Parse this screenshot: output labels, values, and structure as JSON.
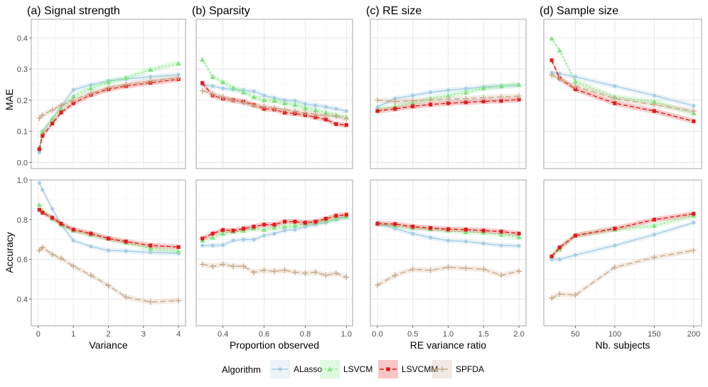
{
  "legend": {
    "title": "Algorithm",
    "items": [
      {
        "name": "ALasso",
        "color": "#a6cee3",
        "shape": "circle",
        "dash": "solid"
      },
      {
        "name": "LSVCM",
        "color": "#7fe57f",
        "shape": "triangle",
        "dash": "dotted"
      },
      {
        "name": "LSVCMM",
        "color": "#e31a1c",
        "shape": "square",
        "dash": "dashed"
      },
      {
        "name": "SPFDA",
        "color": "#c8a98a",
        "shape": "plus",
        "dash": "longdash"
      }
    ],
    "placement": "bottom"
  },
  "row_labels": {
    "top": "MAE",
    "bottom": "Accuracy"
  },
  "chart_data": [
    {
      "type": "line",
      "panel": "(a) Signal strength",
      "xlabel": "Variance",
      "ylabel": "MAE",
      "xlim": [
        -0.2,
        4.2
      ],
      "ylim": [
        -0.02,
        0.46
      ],
      "xticks": [
        0,
        1,
        2,
        3,
        4
      ],
      "yticks": [
        0.0,
        0.1,
        0.2,
        0.3,
        0.4
      ],
      "grid": true,
      "series": [
        {
          "name": "ALasso",
          "x": [
            0.03,
            0.12,
            0.4,
            0.65,
            1.0,
            1.5,
            2.0,
            2.5,
            3.2,
            4.0
          ],
          "y": [
            0.032,
            0.1,
            0.14,
            0.18,
            0.233,
            0.249,
            0.262,
            0.268,
            0.275,
            0.282
          ]
        },
        {
          "name": "LSVCM",
          "x": [
            0.03,
            0.12,
            0.4,
            0.65,
            1.0,
            1.5,
            2.0,
            2.5,
            3.2,
            4.0
          ],
          "y": [
            0.048,
            0.098,
            0.14,
            0.172,
            0.212,
            0.238,
            0.258,
            0.272,
            0.298,
            0.318
          ]
        },
        {
          "name": "LSVCMM",
          "x": [
            0.03,
            0.12,
            0.4,
            0.65,
            1.0,
            1.5,
            2.0,
            2.5,
            3.2,
            4.0
          ],
          "y": [
            0.042,
            0.085,
            0.125,
            0.16,
            0.19,
            0.217,
            0.235,
            0.245,
            0.256,
            0.267
          ]
        },
        {
          "name": "SPFDA",
          "x": [
            0.03,
            0.12,
            0.4,
            0.65,
            1.0,
            1.5,
            2.0,
            2.5,
            3.2,
            4.0
          ],
          "y": [
            0.142,
            0.152,
            0.168,
            0.183,
            0.2,
            0.222,
            0.24,
            0.25,
            0.262,
            0.272
          ]
        }
      ]
    },
    {
      "type": "line",
      "panel": "(b) Sparsity",
      "xlabel": "Proportion observed",
      "ylabel": "MAE",
      "xlim": [
        0.27,
        1.03
      ],
      "ylim": [
        -0.02,
        0.46
      ],
      "xticks": [
        0.4,
        0.6,
        0.8,
        1.0
      ],
      "yticks": [
        0.0,
        0.1,
        0.2,
        0.3,
        0.4
      ],
      "grid": true,
      "series": [
        {
          "name": "ALasso",
          "x": [
            0.3,
            0.35,
            0.4,
            0.45,
            0.5,
            0.55,
            0.6,
            0.65,
            0.7,
            0.75,
            0.8,
            0.85,
            0.9,
            0.95,
            1.0
          ],
          "y": [
            0.25,
            0.245,
            0.238,
            0.234,
            0.232,
            0.228,
            0.215,
            0.207,
            0.2,
            0.198,
            0.188,
            0.183,
            0.178,
            0.172,
            0.165
          ]
        },
        {
          "name": "LSVCM",
          "x": [
            0.3,
            0.35,
            0.4,
            0.45,
            0.5,
            0.55,
            0.6,
            0.65,
            0.7,
            0.75,
            0.8,
            0.85,
            0.9,
            0.95,
            1.0
          ],
          "y": [
            0.33,
            0.275,
            0.258,
            0.24,
            0.225,
            0.21,
            0.2,
            0.198,
            0.19,
            0.185,
            0.175,
            0.168,
            0.16,
            0.152,
            0.145
          ]
        },
        {
          "name": "LSVCMM",
          "x": [
            0.3,
            0.35,
            0.4,
            0.45,
            0.5,
            0.55,
            0.6,
            0.65,
            0.7,
            0.75,
            0.8,
            0.85,
            0.9,
            0.95,
            1.0
          ],
          "y": [
            0.255,
            0.215,
            0.205,
            0.2,
            0.195,
            0.185,
            0.172,
            0.17,
            0.16,
            0.157,
            0.152,
            0.145,
            0.138,
            0.123,
            0.12
          ]
        },
        {
          "name": "SPFDA",
          "x": [
            0.3,
            0.35,
            0.4,
            0.45,
            0.5,
            0.55,
            0.6,
            0.65,
            0.7,
            0.75,
            0.8,
            0.85,
            0.9,
            0.95,
            1.0
          ],
          "y": [
            0.23,
            0.22,
            0.21,
            0.2,
            0.192,
            0.183,
            0.18,
            0.175,
            0.17,
            0.165,
            0.16,
            0.155,
            0.15,
            0.148,
            0.14
          ]
        }
      ]
    },
    {
      "type": "line",
      "panel": "(c) RE size",
      "xlabel": "RE variance ratio",
      "ylabel": "MAE",
      "xlim": [
        -0.1,
        2.1
      ],
      "ylim": [
        -0.02,
        0.46
      ],
      "xticks": [
        0.0,
        0.5,
        1.0,
        1.5,
        2.0
      ],
      "yticks": [
        0.0,
        0.1,
        0.2,
        0.3,
        0.4
      ],
      "grid": true,
      "series": [
        {
          "name": "ALasso",
          "x": [
            0.0,
            0.25,
            0.5,
            0.75,
            1.0,
            1.25,
            1.5,
            1.75,
            2.0
          ],
          "y": [
            0.178,
            0.205,
            0.215,
            0.225,
            0.232,
            0.237,
            0.242,
            0.245,
            0.248
          ]
        },
        {
          "name": "LSVCM",
          "x": [
            0.0,
            0.25,
            0.5,
            0.75,
            1.0,
            1.25,
            1.5,
            1.75,
            2.0
          ],
          "y": [
            0.168,
            0.18,
            0.192,
            0.205,
            0.215,
            0.225,
            0.238,
            0.245,
            0.25
          ]
        },
        {
          "name": "LSVCMM",
          "x": [
            0.0,
            0.25,
            0.5,
            0.75,
            1.0,
            1.25,
            1.5,
            1.75,
            2.0
          ],
          "y": [
            0.165,
            0.172,
            0.18,
            0.186,
            0.19,
            0.193,
            0.196,
            0.198,
            0.202
          ]
        },
        {
          "name": "SPFDA",
          "x": [
            0.0,
            0.25,
            0.5,
            0.75,
            1.0,
            1.25,
            1.5,
            1.75,
            2.0
          ],
          "y": [
            0.2,
            0.195,
            0.198,
            0.2,
            0.203,
            0.205,
            0.208,
            0.21,
            0.213
          ]
        }
      ]
    },
    {
      "type": "line",
      "panel": "(d) Sample size",
      "xlabel": "Nb. subjects",
      "ylabel": "MAE",
      "xlim": [
        10,
        210
      ],
      "ylim": [
        -0.02,
        0.46
      ],
      "xticks": [
        50,
        100,
        150,
        200
      ],
      "yticks": [
        0.0,
        0.1,
        0.2,
        0.3,
        0.4
      ],
      "grid": true,
      "series": [
        {
          "name": "ALasso",
          "x": [
            20,
            30,
            50,
            100,
            150,
            200
          ],
          "y": [
            0.288,
            0.285,
            0.275,
            0.245,
            0.215,
            0.182
          ]
        },
        {
          "name": "LSVCM",
          "x": [
            20,
            30,
            50,
            100,
            150,
            200
          ],
          "y": [
            0.398,
            0.36,
            0.26,
            0.21,
            0.195,
            0.158
          ]
        },
        {
          "name": "LSVCMM",
          "x": [
            20,
            30,
            50,
            100,
            150,
            200
          ],
          "y": [
            0.328,
            0.27,
            0.235,
            0.19,
            0.165,
            0.132
          ]
        },
        {
          "name": "SPFDA",
          "x": [
            20,
            30,
            50,
            100,
            150,
            200
          ],
          "y": [
            0.28,
            0.268,
            0.245,
            0.205,
            0.185,
            0.165
          ]
        }
      ]
    },
    {
      "type": "line",
      "panel": "(a) Signal strength",
      "xlabel": "Variance",
      "ylabel": "Accuracy",
      "xlim": [
        -0.2,
        4.2
      ],
      "ylim": [
        0.265,
        1.0
      ],
      "xticks": [
        0,
        1,
        2,
        3,
        4
      ],
      "yticks": [
        0.4,
        0.6,
        0.8,
        1.0
      ],
      "grid": true,
      "series": [
        {
          "name": "ALasso",
          "x": [
            0.03,
            0.12,
            0.4,
            0.65,
            1.0,
            1.5,
            2.0,
            2.5,
            3.2,
            4.0
          ],
          "y": [
            0.985,
            0.95,
            0.855,
            0.775,
            0.695,
            0.665,
            0.645,
            0.642,
            0.635,
            0.63
          ]
        },
        {
          "name": "LSVCM",
          "x": [
            0.03,
            0.12,
            0.4,
            0.65,
            1.0,
            1.5,
            2.0,
            2.5,
            3.2,
            4.0
          ],
          "y": [
            0.875,
            0.845,
            0.805,
            0.775,
            0.745,
            0.725,
            0.705,
            0.685,
            0.655,
            0.64
          ]
        },
        {
          "name": "LSVCMM",
          "x": [
            0.03,
            0.12,
            0.4,
            0.65,
            1.0,
            1.5,
            2.0,
            2.5,
            3.2,
            4.0
          ],
          "y": [
            0.85,
            0.835,
            0.81,
            0.78,
            0.75,
            0.73,
            0.705,
            0.69,
            0.67,
            0.662
          ]
        },
        {
          "name": "SPFDA",
          "x": [
            0.03,
            0.12,
            0.4,
            0.65,
            1.0,
            1.5,
            2.0,
            2.5,
            3.2,
            4.0
          ],
          "y": [
            0.645,
            0.66,
            0.625,
            0.605,
            0.565,
            0.52,
            0.468,
            0.41,
            0.385,
            0.392
          ]
        }
      ]
    },
    {
      "type": "line",
      "panel": "(b) Sparsity",
      "xlabel": "Proportion observed",
      "ylabel": "Accuracy",
      "xlim": [
        0.27,
        1.03
      ],
      "ylim": [
        0.265,
        1.0
      ],
      "xticks": [
        0.4,
        0.6,
        0.8,
        1.0
      ],
      "yticks": [
        0.4,
        0.6,
        0.8,
        1.0
      ],
      "grid": true,
      "series": [
        {
          "name": "ALasso",
          "x": [
            0.3,
            0.35,
            0.4,
            0.45,
            0.5,
            0.55,
            0.6,
            0.65,
            0.7,
            0.75,
            0.8,
            0.85,
            0.9,
            0.95,
            1.0
          ],
          "y": [
            0.67,
            0.67,
            0.672,
            0.695,
            0.7,
            0.7,
            0.72,
            0.73,
            0.745,
            0.75,
            0.765,
            0.775,
            0.785,
            0.8,
            0.815
          ]
        },
        {
          "name": "LSVCM",
          "x": [
            0.3,
            0.35,
            0.4,
            0.45,
            0.5,
            0.55,
            0.6,
            0.65,
            0.7,
            0.75,
            0.8,
            0.85,
            0.9,
            0.95,
            1.0
          ],
          "y": [
            0.695,
            0.71,
            0.73,
            0.74,
            0.745,
            0.755,
            0.75,
            0.76,
            0.765,
            0.77,
            0.78,
            0.785,
            0.795,
            0.805,
            0.815
          ]
        },
        {
          "name": "LSVCMM",
          "x": [
            0.3,
            0.35,
            0.4,
            0.45,
            0.5,
            0.55,
            0.6,
            0.65,
            0.7,
            0.75,
            0.8,
            0.85,
            0.9,
            0.95,
            1.0
          ],
          "y": [
            0.705,
            0.73,
            0.748,
            0.745,
            0.755,
            0.765,
            0.775,
            0.775,
            0.79,
            0.79,
            0.785,
            0.79,
            0.805,
            0.82,
            0.825
          ]
        },
        {
          "name": "SPFDA",
          "x": [
            0.3,
            0.35,
            0.4,
            0.45,
            0.5,
            0.55,
            0.6,
            0.65,
            0.7,
            0.75,
            0.8,
            0.85,
            0.9,
            0.95,
            1.0
          ],
          "y": [
            0.575,
            0.565,
            0.575,
            0.565,
            0.565,
            0.535,
            0.545,
            0.54,
            0.545,
            0.535,
            0.53,
            0.535,
            0.52,
            0.53,
            0.51
          ]
        }
      ]
    },
    {
      "type": "line",
      "panel": "(c) RE size",
      "xlabel": "RE variance ratio",
      "ylabel": "Accuracy",
      "xlim": [
        -0.1,
        2.1
      ],
      "ylim": [
        0.265,
        1.0
      ],
      "xticks": [
        0.0,
        0.5,
        1.0,
        1.5,
        2.0
      ],
      "yticks": [
        0.4,
        0.6,
        0.8,
        1.0
      ],
      "grid": true,
      "series": [
        {
          "name": "ALasso",
          "x": [
            0.0,
            0.25,
            0.5,
            0.75,
            1.0,
            1.25,
            1.5,
            1.75,
            2.0
          ],
          "y": [
            0.785,
            0.755,
            0.73,
            0.71,
            0.695,
            0.69,
            0.68,
            0.67,
            0.668
          ]
        },
        {
          "name": "LSVCM",
          "x": [
            0.0,
            0.25,
            0.5,
            0.75,
            1.0,
            1.25,
            1.5,
            1.75,
            2.0
          ],
          "y": [
            0.778,
            0.77,
            0.758,
            0.752,
            0.745,
            0.738,
            0.735,
            0.725,
            0.712
          ]
        },
        {
          "name": "LSVCMM",
          "x": [
            0.0,
            0.25,
            0.5,
            0.75,
            1.0,
            1.25,
            1.5,
            1.75,
            2.0
          ],
          "y": [
            0.78,
            0.778,
            0.765,
            0.758,
            0.752,
            0.75,
            0.745,
            0.74,
            0.73
          ]
        },
        {
          "name": "SPFDA",
          "x": [
            0.0,
            0.25,
            0.5,
            0.75,
            1.0,
            1.25,
            1.5,
            1.75,
            2.0
          ],
          "y": [
            0.47,
            0.52,
            0.55,
            0.545,
            0.56,
            0.555,
            0.55,
            0.52,
            0.54
          ]
        }
      ]
    },
    {
      "type": "line",
      "panel": "(d) Sample size",
      "xlabel": "Nb. subjects",
      "ylabel": "Accuracy",
      "xlim": [
        10,
        210
      ],
      "ylim": [
        0.265,
        1.0
      ],
      "xticks": [
        50,
        100,
        150,
        200
      ],
      "yticks": [
        0.4,
        0.6,
        0.8,
        1.0
      ],
      "grid": true,
      "series": [
        {
          "name": "ALasso",
          "x": [
            20,
            30,
            50,
            100,
            150,
            200
          ],
          "y": [
            0.6,
            0.6,
            0.622,
            0.67,
            0.725,
            0.785
          ]
        },
        {
          "name": "LSVCM",
          "x": [
            20,
            30,
            50,
            100,
            150,
            200
          ],
          "y": [
            0.615,
            0.65,
            0.72,
            0.75,
            0.77,
            0.82
          ]
        },
        {
          "name": "LSVCMM",
          "x": [
            20,
            30,
            50,
            100,
            150,
            200
          ],
          "y": [
            0.615,
            0.66,
            0.72,
            0.755,
            0.8,
            0.83
          ]
        },
        {
          "name": "SPFDA",
          "x": [
            20,
            30,
            50,
            100,
            150,
            200
          ],
          "y": [
            0.405,
            0.425,
            0.42,
            0.56,
            0.61,
            0.645
          ]
        }
      ]
    }
  ]
}
